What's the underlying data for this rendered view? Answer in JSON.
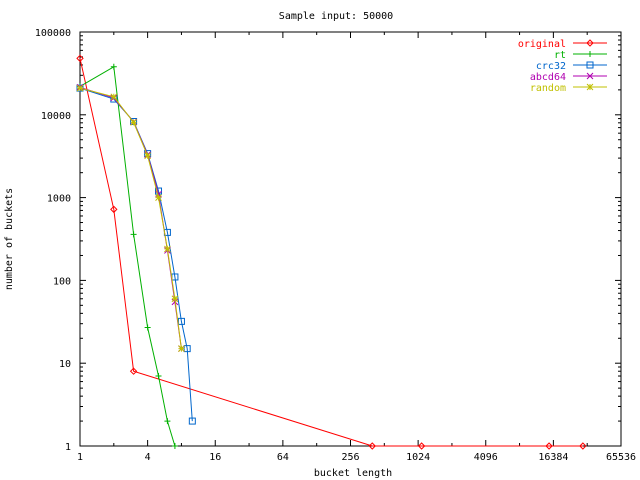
{
  "chart_data": {
    "type": "line",
    "title": "Sample input: 50000",
    "xlabel": "bucket length",
    "ylabel": "number of buckets",
    "xscale": "log2",
    "yscale": "log10",
    "xlim": [
      1,
      65536
    ],
    "ylim": [
      1,
      100000
    ],
    "x_ticks": [
      1,
      4,
      16,
      64,
      256,
      1024,
      4096,
      16384,
      65536
    ],
    "x_tick_labels": [
      "1",
      "4",
      "16",
      "64",
      "256",
      "1024",
      "4096",
      "16384",
      "65536"
    ],
    "y_ticks": [
      1,
      10,
      100,
      1000,
      10000,
      100000
    ],
    "y_tick_labels": [
      "1",
      "10",
      "100",
      "1000",
      "10000",
      "100000"
    ],
    "legend": "top-right",
    "grid": false,
    "series": [
      {
        "name": "original",
        "color": "#ff0000",
        "marker": "diamond",
        "points": [
          [
            1,
            48000
          ],
          [
            2,
            720
          ],
          [
            3,
            8
          ],
          [
            400,
            1
          ],
          [
            1100,
            1
          ],
          [
            15000,
            1
          ],
          [
            30000,
            1
          ]
        ]
      },
      {
        "name": "rt",
        "color": "#00b000",
        "marker": "plus",
        "points": [
          [
            1,
            22000
          ],
          [
            2,
            38000
          ],
          [
            3,
            360
          ],
          [
            4,
            27
          ],
          [
            5,
            7
          ],
          [
            6,
            2
          ],
          [
            7,
            1
          ]
        ]
      },
      {
        "name": "crc32",
        "color": "#0066cc",
        "marker": "square",
        "points": [
          [
            1,
            21000
          ],
          [
            2,
            15500
          ],
          [
            3,
            8300
          ],
          [
            4,
            3400
          ],
          [
            5,
            1200
          ],
          [
            6,
            380
          ],
          [
            7,
            110
          ],
          [
            8,
            32
          ],
          [
            9,
            15
          ],
          [
            10,
            2
          ]
        ]
      },
      {
        "name": "abcd64",
        "color": "#b000b0",
        "marker": "x",
        "points": [
          [
            1,
            21500
          ],
          [
            2,
            16000
          ],
          [
            3,
            8200
          ],
          [
            4,
            3300
          ],
          [
            5,
            1100
          ],
          [
            6,
            230
          ],
          [
            7,
            55
          ],
          [
            8,
            15
          ]
        ]
      },
      {
        "name": "random",
        "color": "#c0c000",
        "marker": "star",
        "points": [
          [
            1,
            21000
          ],
          [
            2,
            16500
          ],
          [
            3,
            8100
          ],
          [
            4,
            3200
          ],
          [
            5,
            1000
          ],
          [
            6,
            240
          ],
          [
            7,
            60
          ],
          [
            8,
            15
          ]
        ]
      }
    ]
  }
}
